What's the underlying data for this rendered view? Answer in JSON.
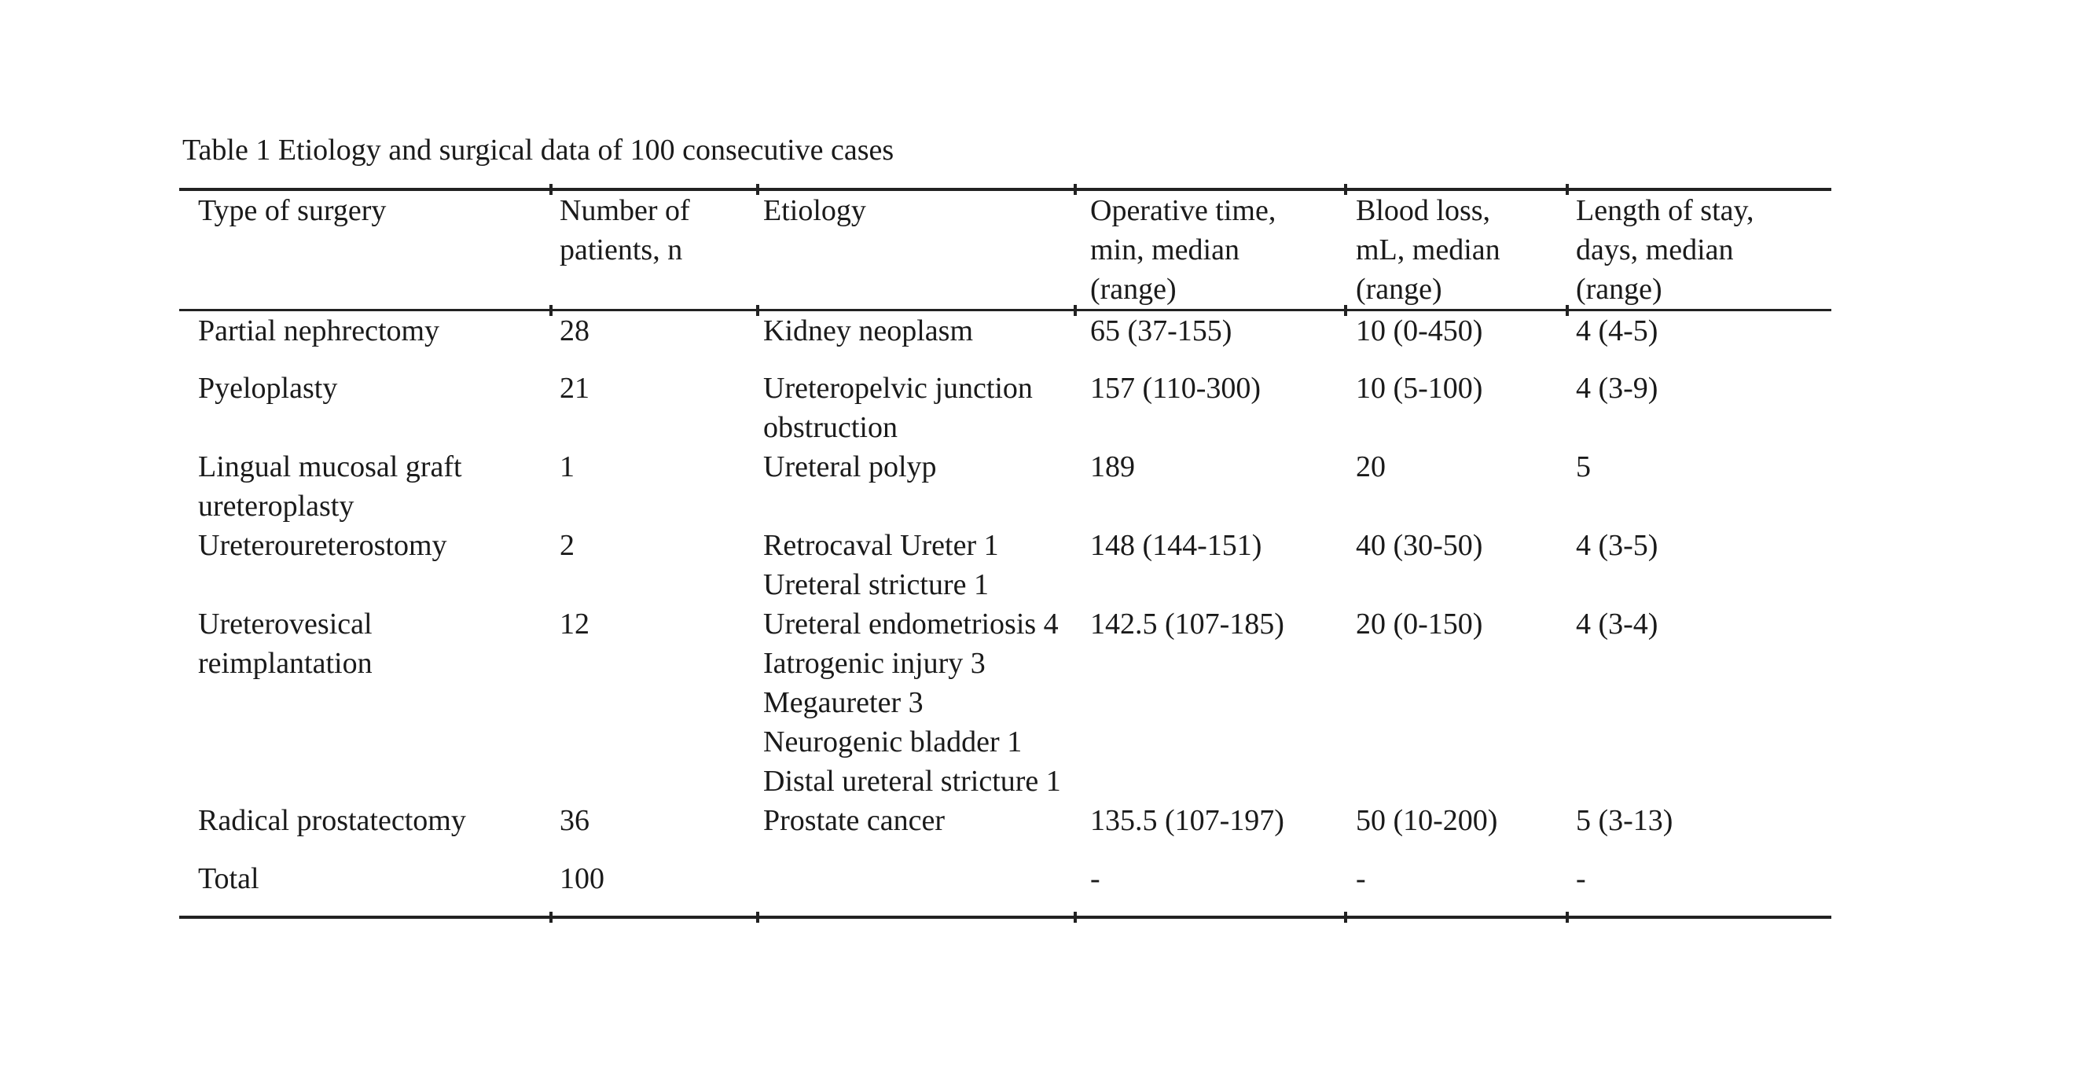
{
  "page": {
    "caption": "Table 1 Etiology and surgical data of 100 consecutive cases"
  },
  "table": {
    "columns": [
      {
        "label": "Type of surgery"
      },
      {
        "label": "Number of\npatients, n"
      },
      {
        "label": "Etiology"
      },
      {
        "label": "Operative time,\nmin, median\n(range)"
      },
      {
        "label": "Blood loss,\nmL, median\n(range)"
      },
      {
        "label": "Length of stay,\ndays, median\n(range)"
      }
    ],
    "rows": [
      {
        "type_of_surgery": "Partial nephrectomy",
        "number_of_patients": "28",
        "etiology": "Kidney neoplasm",
        "operative_time": "65 (37-155)",
        "blood_loss": "10 (0-450)",
        "length_of_stay": "4 (4-5)"
      },
      {
        "type_of_surgery": "Pyeloplasty",
        "number_of_patients": "21",
        "etiology": "Ureteropelvic junction\nobstruction",
        "operative_time": "157 (110-300)",
        "blood_loss": "10 (5-100)",
        "length_of_stay": "4 (3-9)"
      },
      {
        "type_of_surgery": "Lingual mucosal graft\nureteroplasty",
        "number_of_patients": "1",
        "etiology": "Ureteral polyp",
        "operative_time": "189",
        "blood_loss": "20",
        "length_of_stay": "5"
      },
      {
        "type_of_surgery": "Ureteroureterostomy",
        "number_of_patients": "2",
        "etiology": "Retrocaval Ureter 1\nUreteral stricture 1",
        "operative_time": "148 (144-151)",
        "blood_loss": "40 (30-50)",
        "length_of_stay": "4 (3-5)"
      },
      {
        "type_of_surgery": "Ureterovesical\nreimplantation",
        "number_of_patients": "12",
        "etiology": "Ureteral endometriosis 4\nIatrogenic injury 3\nMegaureter 3\nNeurogenic bladder 1\nDistal ureteral stricture 1",
        "operative_time": "142.5 (107-185)",
        "blood_loss": "20 (0-150)",
        "length_of_stay": "4 (3-4)"
      },
      {
        "type_of_surgery": "Radical prostatectomy",
        "number_of_patients": "36",
        "etiology": "Prostate cancer",
        "operative_time": "135.5 (107-197)",
        "blood_loss": "50 (10-200)",
        "length_of_stay": "5 (3-13)"
      },
      {
        "type_of_surgery": "Total",
        "number_of_patients": "100",
        "etiology": "",
        "operative_time": "-",
        "blood_loss": "-",
        "length_of_stay": "-"
      }
    ]
  }
}
